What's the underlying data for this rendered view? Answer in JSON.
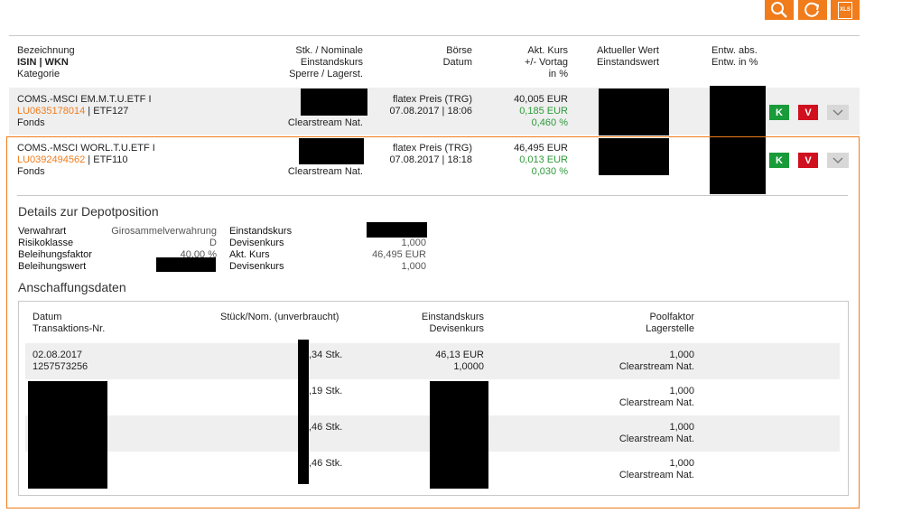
{
  "toolbar": {
    "search_icon": "search-icon",
    "refresh_icon": "refresh-icon",
    "xls_label": "XLS",
    "accent_color": "#f07c1c"
  },
  "header": {
    "col1": [
      "Bezeichnung",
      "ISIN | WKN",
      "Kategorie"
    ],
    "col2": [
      "Stk. / Nominale",
      "Einstandskurs",
      "Sperre / Lagerst."
    ],
    "col3": [
      "Börse",
      "Datum"
    ],
    "col4": [
      "Akt. Kurs",
      "+/- Vortag",
      "in %"
    ],
    "col5": [
      "Aktueller Wert",
      "Einstandswert"
    ],
    "col6": [
      "Entw. abs.",
      "Entw. in %"
    ]
  },
  "positions": [
    {
      "name": "COMS.-MSCI EM.M.T.U.ETF I",
      "isin": "LU0635178014",
      "wkn": "ETF127",
      "category": "Fonds",
      "lager": "Clearstream Nat.",
      "exchange": "flatex Preis (TRG)",
      "datetime": "07.08.2017 | 18:06",
      "price": "40,005 EUR",
      "change_abs": "0,185 EUR",
      "change_pct": "0,460 %",
      "k_label": "K",
      "v_label": "V"
    },
    {
      "name": "COMS.-MSCI WORL.T.U.ETF I",
      "isin": "LU0392494562",
      "wkn": "ETF110",
      "category": "Fonds",
      "lager": "Clearstream Nat.",
      "exchange": "flatex Preis (TRG)",
      "datetime": "07.08.2017 | 18:18",
      "price": "46,495 EUR",
      "change_abs": "0,013 EUR",
      "change_pct": "0,030 %",
      "k_label": "K",
      "v_label": "V"
    }
  ],
  "details": {
    "title": "Details zur Depotposition",
    "left": [
      {
        "label": "Verwahrart",
        "value": "Girosammelverwahrung"
      },
      {
        "label": "Risikoklasse",
        "value": "D"
      },
      {
        "label": "Beleihungsfaktor",
        "value": "40,00 %"
      },
      {
        "label": "Beleihungswert",
        "value": ""
      }
    ],
    "right": [
      {
        "label": "Einstandskurs",
        "value": ""
      },
      {
        "label": "Devisenkurs",
        "value": "1,000"
      },
      {
        "label": "Akt. Kurs",
        "value": "46,495 EUR"
      },
      {
        "label": "Devisenkurs",
        "value": "1,000"
      }
    ]
  },
  "acquisition": {
    "title": "Anschaffungsdaten",
    "headers": {
      "c1": [
        "Datum",
        "Transaktions-Nr."
      ],
      "c2": [
        "Stück/Nom. (unverbraucht)"
      ],
      "c3": [
        "Einstandskurs",
        "Devisenkurs"
      ],
      "c4": [
        "Poolfaktor",
        "Lagerstelle"
      ]
    },
    "rows": [
      {
        "date": "02.08.2017",
        "txn": "1257573256",
        "qty": ",34 Stk.",
        "kurs": "46,13 EUR",
        "devisen": "1,0000",
        "pool": "1,000",
        "lager": "Clearstream Nat."
      },
      {
        "date": "",
        "txn": "",
        "qty": ",19 Stk.",
        "kurs": "",
        "devisen": "",
        "pool": "1,000",
        "lager": "Clearstream Nat."
      },
      {
        "date": "",
        "txn": "",
        "qty": ",46 Stk.",
        "kurs": "",
        "devisen": "",
        "pool": "1,000",
        "lager": "Clearstream Nat."
      },
      {
        "date": "",
        "txn": "",
        "qty": ",46 Stk.",
        "kurs": "",
        "devisen": "",
        "pool": "1,000",
        "lager": "Clearstream Nat."
      }
    ]
  }
}
